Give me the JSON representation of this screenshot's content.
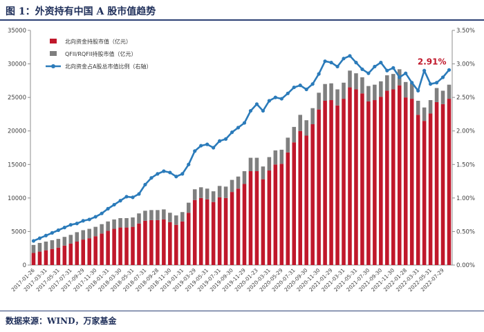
{
  "page": {
    "title": "图 1：外资持有中国 A 股市值趋势",
    "source_label": "数据来源：",
    "source_text": "WIND，万家基金"
  },
  "chart_data": {
    "type": "bar",
    "stacked": true,
    "title": "",
    "categories": [
      "2017-01-26",
      "",
      "2017-03-31",
      "",
      "2017-05-31",
      "",
      "2017-07-31",
      "",
      "2017-09-29",
      "",
      "2017-11-30",
      "",
      "2018-01-31",
      "",
      "2018-03-30",
      "",
      "2018-05-31",
      "",
      "2018-07-31",
      "",
      "2018-09-28",
      "",
      "2018-11-30",
      "",
      "2019-01-31",
      "",
      "2019-03-29",
      "",
      "2019-05-31",
      "",
      "2019-07-31",
      "",
      "2019-09-30",
      "",
      "2019-11-29",
      "",
      "2020-01-23",
      "",
      "2020-03-31",
      "",
      "2020-05-29",
      "",
      "2020-07-31",
      "",
      "2020-09-30",
      "",
      "2020-11-30",
      "",
      "2021-01-29",
      "",
      "2021-03-31",
      "",
      "2021-05-31",
      "",
      "2021-07-30",
      "",
      "2021-09-30",
      "",
      "2021-11-30",
      "",
      "2022-01-28",
      "",
      "2022-03-31",
      "",
      "2022-05-31",
      "",
      "2022-07-29",
      ""
    ],
    "series": [
      {
        "name": "北向资金持股市值（亿元）",
        "axis": "left",
        "color": "#c0182b",
        "values": [
          1800,
          2000,
          2200,
          2400,
          2600,
          2900,
          3200,
          3500,
          3800,
          4000,
          4300,
          4700,
          5100,
          5400,
          5600,
          5600,
          5700,
          6200,
          6600,
          6700,
          6700,
          6800,
          6400,
          6000,
          6500,
          7800,
          9700,
          10000,
          9800,
          9400,
          10100,
          10000,
          10900,
          11400,
          12100,
          14000,
          14000,
          12800,
          14100,
          15000,
          15100,
          16800,
          18300,
          20000,
          19300,
          21000,
          23200,
          24500,
          24600,
          23800,
          24800,
          26500,
          26200,
          25600,
          24400,
          24600,
          25100,
          26000,
          26200,
          26800,
          25000,
          24800,
          22400,
          21500,
          22600,
          24300,
          24000,
          24800
        ]
      },
      {
        "name": "QFII/RQFII持股市值（亿元）",
        "axis": "left",
        "color": "#7f7f7f",
        "values": [
          1200,
          1300,
          1300,
          1300,
          1300,
          1300,
          1300,
          1400,
          1400,
          1400,
          1400,
          1400,
          1400,
          1400,
          1400,
          1400,
          1400,
          1500,
          1500,
          1500,
          1500,
          1500,
          1400,
          1400,
          1400,
          1500,
          1600,
          1600,
          1600,
          1600,
          1700,
          1700,
          1800,
          1800,
          1900,
          2000,
          2000,
          1900,
          2000,
          2100,
          2100,
          2200,
          2300,
          2400,
          2300,
          2400,
          2500,
          2500,
          2500,
          2400,
          2400,
          2500,
          2400,
          2400,
          2300,
          2300,
          2300,
          2300,
          2300,
          2400,
          2300,
          2300,
          2100,
          2000,
          2000,
          2100,
          2000,
          2100
        ]
      },
      {
        "name": "北向资金占A股总市值比例（右轴）",
        "type": "line",
        "axis": "right",
        "color": "#2b7bba",
        "values": [
          0.36,
          0.4,
          0.44,
          0.48,
          0.52,
          0.56,
          0.6,
          0.62,
          0.66,
          0.68,
          0.72,
          0.77,
          0.84,
          0.9,
          0.96,
          1.02,
          1.01,
          1.06,
          1.2,
          1.3,
          1.36,
          1.4,
          1.38,
          1.32,
          1.36,
          1.5,
          1.7,
          1.78,
          1.8,
          1.75,
          1.85,
          1.88,
          1.98,
          2.05,
          2.12,
          2.3,
          2.4,
          2.3,
          2.45,
          2.5,
          2.48,
          2.56,
          2.65,
          2.68,
          2.62,
          2.7,
          2.85,
          3.04,
          3.02,
          2.96,
          3.08,
          3.12,
          3.02,
          2.92,
          2.86,
          2.96,
          3.02,
          2.9,
          2.94,
          2.8,
          2.86,
          2.72,
          2.6,
          2.9,
          2.7,
          2.72,
          2.8,
          2.91
        ]
      }
    ],
    "y_left": {
      "min": 0,
      "max": 35000,
      "ticks": [
        0,
        5000,
        10000,
        15000,
        20000,
        25000,
        30000,
        35000
      ]
    },
    "y_right": {
      "min": 0,
      "max": 3.5,
      "ticks": [
        "0.00%",
        "0.50%",
        "1.00%",
        "1.50%",
        "2.00%",
        "2.50%",
        "3.00%",
        "3.50%"
      ]
    },
    "annotation": {
      "text": "2.91%",
      "color": "#c0182b"
    },
    "legend_position": "top-left",
    "grid": false
  }
}
